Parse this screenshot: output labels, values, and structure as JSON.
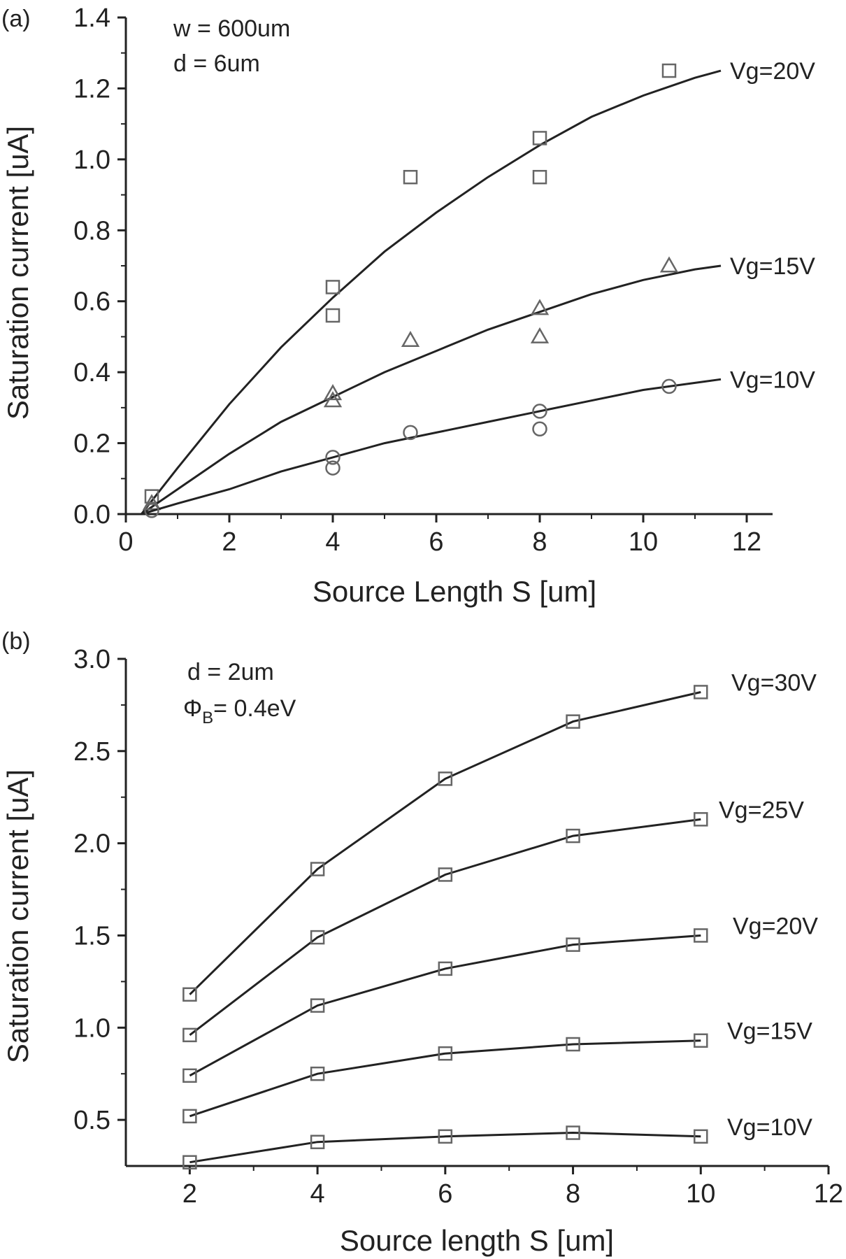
{
  "figure": {
    "panels": [
      {
        "id": "a",
        "panel_label": "(a)",
        "chart_data": {
          "type": "scatter",
          "xlabel": "Source Length S [um]",
          "ylabel": "Saturation current [uA]",
          "xlim": [
            0,
            12.5
          ],
          "ylim": [
            0,
            1.4
          ],
          "xticks": [
            0,
            2,
            4,
            6,
            8,
            10,
            12
          ],
          "yticks": [
            0.0,
            0.2,
            0.4,
            0.6,
            0.8,
            1.0,
            1.2,
            1.4
          ],
          "ytick_labels": [
            "0.0",
            "0.2",
            "0.4",
            "0.6",
            "0.8",
            "1.0",
            "1.2",
            "1.4"
          ],
          "annotations": [
            "w = 600um",
            "d = 6um"
          ],
          "series": [
            {
              "name": "Vg=20V",
              "marker": "square",
              "points": [
                [
                  0.5,
                  0.05
                ],
                [
                  4,
                  0.64
                ],
                [
                  4,
                  0.56
                ],
                [
                  5.5,
                  0.95
                ],
                [
                  8,
                  1.06
                ],
                [
                  8,
                  0.95
                ],
                [
                  10.5,
                  1.25
                ]
              ],
              "fit": [
                [
                  0.3,
                  0.0
                ],
                [
                  1,
                  0.13
                ],
                [
                  2,
                  0.31
                ],
                [
                  3,
                  0.47
                ],
                [
                  4,
                  0.61
                ],
                [
                  5,
                  0.74
                ],
                [
                  6,
                  0.85
                ],
                [
                  7,
                  0.95
                ],
                [
                  8,
                  1.04
                ],
                [
                  9,
                  1.12
                ],
                [
                  10,
                  1.18
                ],
                [
                  11,
                  1.23
                ],
                [
                  11.5,
                  1.25
                ]
              ]
            },
            {
              "name": "Vg=15V",
              "marker": "triangle",
              "points": [
                [
                  0.5,
                  0.03
                ],
                [
                  4,
                  0.34
                ],
                [
                  4,
                  0.32
                ],
                [
                  5.5,
                  0.49
                ],
                [
                  8,
                  0.58
                ],
                [
                  8,
                  0.5
                ],
                [
                  10.5,
                  0.7
                ]
              ],
              "fit": [
                [
                  0.3,
                  0.0
                ],
                [
                  1,
                  0.07
                ],
                [
                  2,
                  0.17
                ],
                [
                  3,
                  0.26
                ],
                [
                  4,
                  0.33
                ],
                [
                  5,
                  0.4
                ],
                [
                  6,
                  0.46
                ],
                [
                  7,
                  0.52
                ],
                [
                  8,
                  0.57
                ],
                [
                  9,
                  0.62
                ],
                [
                  10,
                  0.66
                ],
                [
                  11,
                  0.69
                ],
                [
                  11.5,
                  0.7
                ]
              ]
            },
            {
              "name": "Vg=10V",
              "marker": "circle",
              "points": [
                [
                  0.5,
                  0.01
                ],
                [
                  4,
                  0.16
                ],
                [
                  4,
                  0.13
                ],
                [
                  5.5,
                  0.23
                ],
                [
                  8,
                  0.29
                ],
                [
                  8,
                  0.24
                ],
                [
                  10.5,
                  0.36
                ]
              ],
              "fit": [
                [
                  0.3,
                  0.0
                ],
                [
                  1,
                  0.03
                ],
                [
                  2,
                  0.07
                ],
                [
                  3,
                  0.12
                ],
                [
                  4,
                  0.16
                ],
                [
                  5,
                  0.2
                ],
                [
                  6,
                  0.23
                ],
                [
                  7,
                  0.26
                ],
                [
                  8,
                  0.29
                ],
                [
                  9,
                  0.32
                ],
                [
                  10,
                  0.35
                ],
                [
                  11,
                  0.37
                ],
                [
                  11.5,
                  0.38
                ]
              ]
            }
          ]
        }
      },
      {
        "id": "b",
        "panel_label": "(b)",
        "chart_data": {
          "type": "line",
          "xlabel": "Source length S [um]",
          "ylabel": "Saturation current [uA]",
          "xlim": [
            1,
            12
          ],
          "ylim": [
            0.25,
            3.0
          ],
          "xticks": [
            2,
            4,
            6,
            8,
            10,
            12
          ],
          "yticks": [
            0.5,
            1.0,
            1.5,
            2.0,
            2.5,
            3.0
          ],
          "ytick_labels": [
            "0.5",
            "1.0",
            "1.5",
            "2.0",
            "2.5",
            "3.0"
          ],
          "annotations": [
            "d = 2um",
            "Φ",
            "B",
            "= 0.4eV"
          ],
          "x": [
            2,
            4,
            6,
            8,
            10
          ],
          "series": [
            {
              "name": "Vg=30V",
              "marker": "square",
              "values": [
                1.18,
                1.86,
                2.35,
                2.66,
                2.82
              ]
            },
            {
              "name": "Vg=25V",
              "marker": "square",
              "values": [
                0.96,
                1.49,
                1.83,
                2.04,
                2.13
              ]
            },
            {
              "name": "Vg=20V",
              "marker": "square",
              "values": [
                0.74,
                1.12,
                1.32,
                1.45,
                1.5
              ]
            },
            {
              "name": "Vg=15V",
              "marker": "square",
              "values": [
                0.52,
                0.75,
                0.86,
                0.91,
                0.93
              ]
            },
            {
              "name": "Vg=10V",
              "marker": "square",
              "values": [
                0.27,
                0.38,
                0.41,
                0.43,
                0.41
              ]
            }
          ]
        }
      }
    ]
  }
}
